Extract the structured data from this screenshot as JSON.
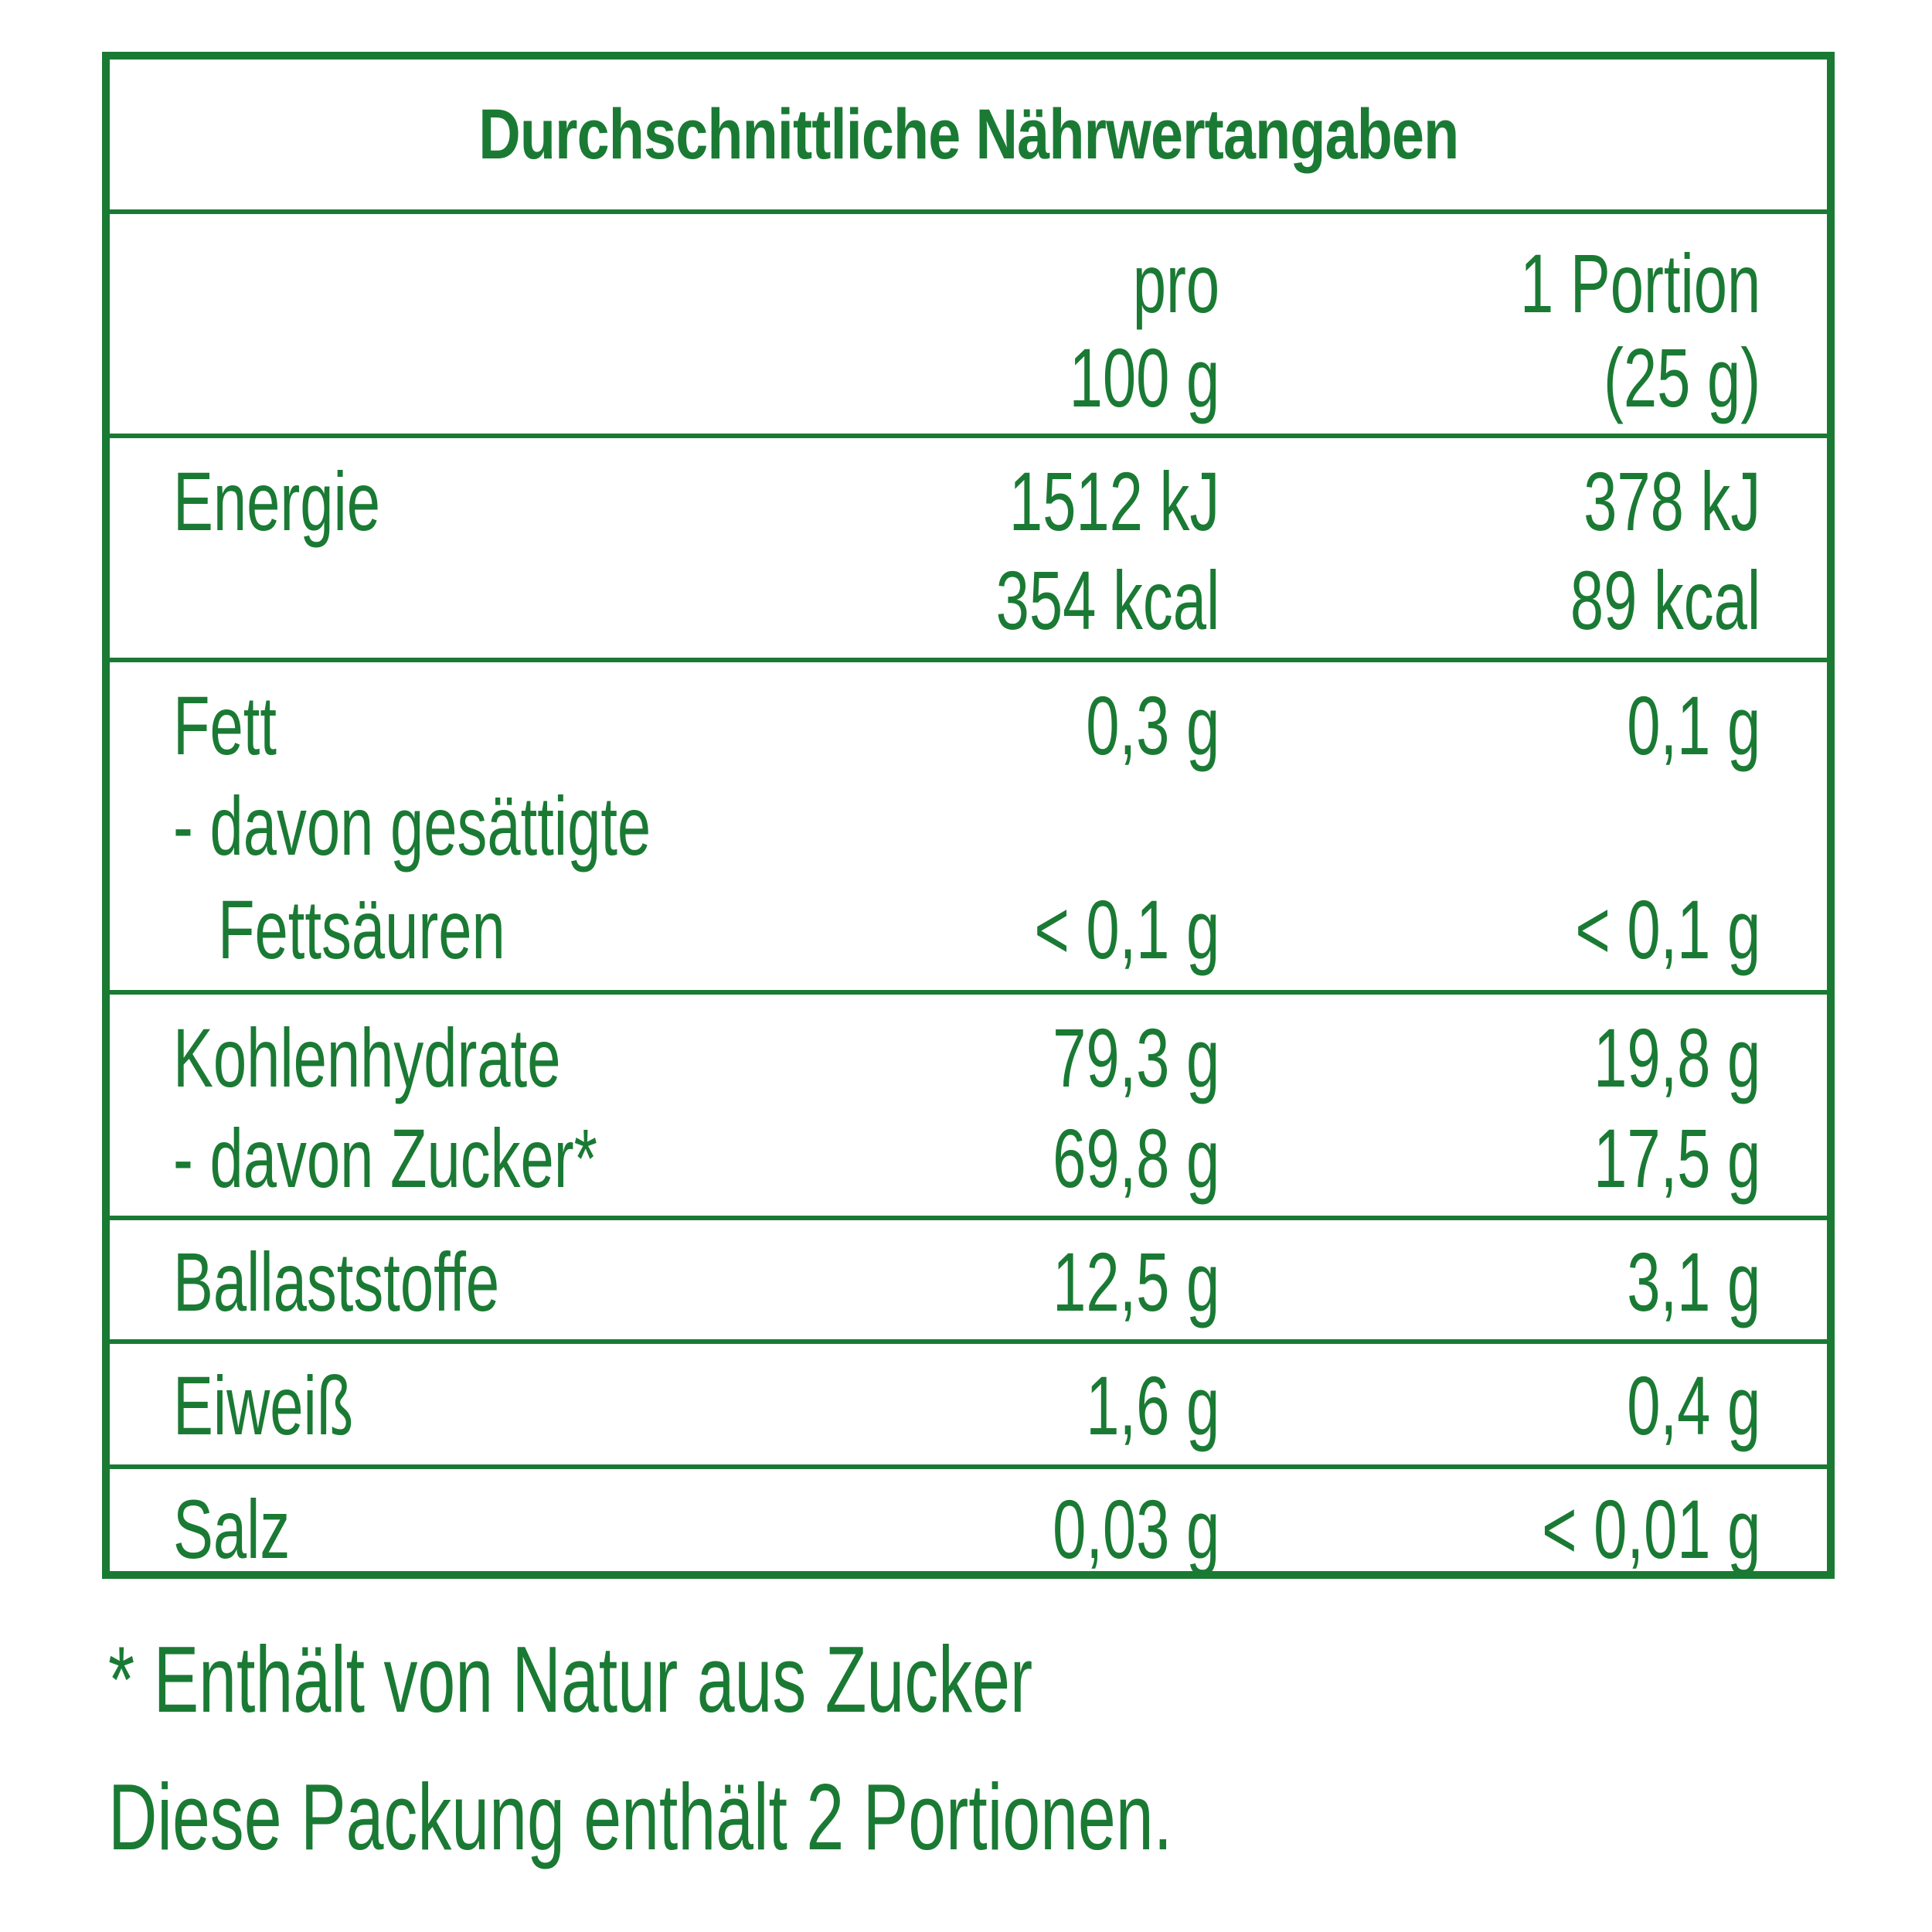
{
  "label": {
    "title": "Durchschnittliche Nährwertangaben",
    "header": {
      "col1_line1": "pro",
      "col1_line2": "100 g",
      "col2_line1": "1 Portion",
      "col2_line2": "(25 g)"
    },
    "rows": [
      {
        "label_lines": [
          "Energie"
        ],
        "per_100g": [
          "1512 kJ",
          "354 kcal"
        ],
        "per_portion": [
          "378 kJ",
          "89 kcal"
        ]
      },
      {
        "label_lines": [
          "Fett",
          "- davon gesättigte",
          "Fettsäuren"
        ],
        "per_100g": [
          "0,3 g",
          "< 0,1 g"
        ],
        "per_portion": [
          "0,1 g",
          "< 0,1 g"
        ]
      },
      {
        "label_lines": [
          "Kohlenhydrate",
          "- davon Zucker*"
        ],
        "per_100g": [
          "79,3 g",
          "69,8 g"
        ],
        "per_portion": [
          "19,8 g",
          "17,5 g"
        ]
      },
      {
        "label_lines": [
          "Ballaststoffe"
        ],
        "per_100g": [
          "12,5 g"
        ],
        "per_portion": [
          "3,1 g"
        ]
      },
      {
        "label_lines": [
          "Eiweiß"
        ],
        "per_100g": [
          "1,6 g"
        ],
        "per_portion": [
          "0,4 g"
        ]
      },
      {
        "label_lines": [
          "Salz"
        ],
        "per_100g": [
          "0,03 g"
        ],
        "per_portion": [
          "< 0,01 g"
        ]
      }
    ]
  },
  "footnotes": {
    "sugar_note": "* Enthält von Natur aus Zucker",
    "package_note": "Diese Packung enthält 2 Portionen."
  },
  "colors": {
    "primary_green": "#1a7a34",
    "background": "#ffffff"
  }
}
